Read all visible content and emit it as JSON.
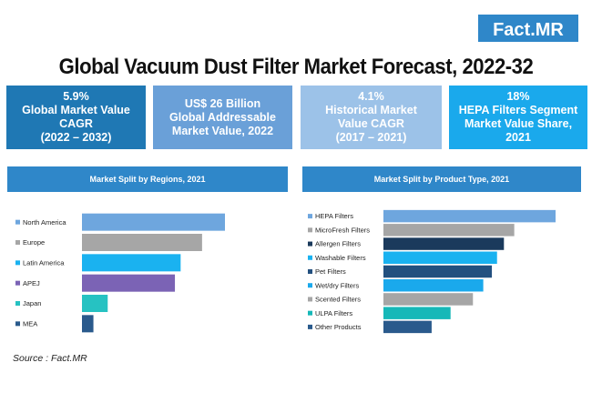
{
  "brand": "Fact.MR",
  "title": "Global Vacuum Dust Filter Market Forecast, 2022-32",
  "kpis": [
    {
      "text": "5.9%\nGlobal Market Value\nCAGR\n(2022 – 2032)",
      "color": "#1f78b4"
    },
    {
      "text": "US$ 26 Billion\nGlobal Addressable\nMarket Value, 2022",
      "color": "#6aa0d8"
    },
    {
      "text": "4.1%\nHistorical Market\nValue CAGR\n(2017 – 2021)",
      "color": "#9cc2e8"
    },
    {
      "text": "18%\nHEPA Filters Segment\nMarket Value Share,\n2021",
      "color": "#1aa9ec"
    }
  ],
  "source": "Source : Fact.MR",
  "chart_data": [
    {
      "type": "bar",
      "orientation": "horizontal",
      "title": "Market Split by Regions, 2021",
      "categories": [
        "North America",
        "Europe",
        "Latin America",
        "APEJ",
        "Japan",
        "MEA"
      ],
      "values": [
        100,
        84,
        69,
        65,
        18,
        8
      ],
      "colors": [
        "#6ea6de",
        "#a6a6a6",
        "#1ab2f0",
        "#7b63b5",
        "#26c2c2",
        "#2a5a8c"
      ]
    },
    {
      "type": "bar",
      "orientation": "horizontal",
      "title": "Market Split by Product Type, 2021",
      "categories": [
        "HEPA Filters",
        "MicroFresh Filters",
        "Allergen Filters",
        "Washable Filters",
        "Pet Filters",
        "Wet/dry Filters",
        "Scented Filters",
        "ULPA Filters",
        "Other Products"
      ],
      "values": [
        100,
        76,
        70,
        66,
        63,
        58,
        52,
        39,
        28
      ],
      "colors": [
        "#6ea6de",
        "#a6a6a6",
        "#1b3a5c",
        "#1ab2f0",
        "#23507f",
        "#1aa9ec",
        "#a6a6a6",
        "#16b8b8",
        "#2a5a8c"
      ]
    }
  ]
}
